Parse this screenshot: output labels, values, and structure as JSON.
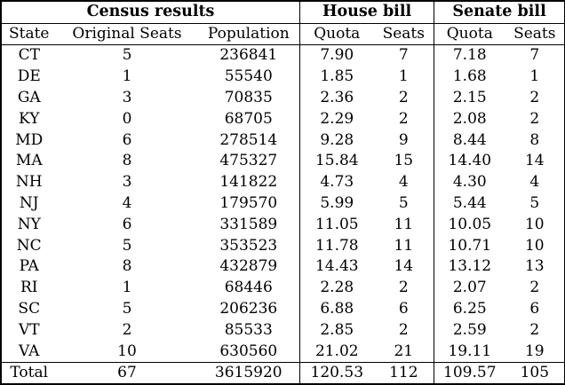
{
  "groups": {
    "census": "Census results",
    "house": "House bill",
    "senate": "Senate bill"
  },
  "columns": {
    "state": "State",
    "original_seats": "Original Seats",
    "population": "Population",
    "house_quota": "Quota",
    "house_seats": "Seats",
    "senate_quota": "Quota",
    "senate_seats": "Seats"
  },
  "rows": [
    {
      "state": "CT",
      "original_seats": "5",
      "population": "236841",
      "house_quota": "7.90",
      "house_seats": "7",
      "senate_quota": "7.18",
      "senate_seats": "7"
    },
    {
      "state": "DE",
      "original_seats": "1",
      "population": "55540",
      "house_quota": "1.85",
      "house_seats": "1",
      "senate_quota": "1.68",
      "senate_seats": "1"
    },
    {
      "state": "GA",
      "original_seats": "3",
      "population": "70835",
      "house_quota": "2.36",
      "house_seats": "2",
      "senate_quota": "2.15",
      "senate_seats": "2"
    },
    {
      "state": "KY",
      "original_seats": "0",
      "population": "68705",
      "house_quota": "2.29",
      "house_seats": "2",
      "senate_quota": "2.08",
      "senate_seats": "2"
    },
    {
      "state": "MD",
      "original_seats": "6",
      "population": "278514",
      "house_quota": "9.28",
      "house_seats": "9",
      "senate_quota": "8.44",
      "senate_seats": "8"
    },
    {
      "state": "MA",
      "original_seats": "8",
      "population": "475327",
      "house_quota": "15.84",
      "house_seats": "15",
      "senate_quota": "14.40",
      "senate_seats": "14"
    },
    {
      "state": "NH",
      "original_seats": "3",
      "population": "141822",
      "house_quota": "4.73",
      "house_seats": "4",
      "senate_quota": "4.30",
      "senate_seats": "4"
    },
    {
      "state": "NJ",
      "original_seats": "4",
      "population": "179570",
      "house_quota": "5.99",
      "house_seats": "5",
      "senate_quota": "5.44",
      "senate_seats": "5"
    },
    {
      "state": "NY",
      "original_seats": "6",
      "population": "331589",
      "house_quota": "11.05",
      "house_seats": "11",
      "senate_quota": "10.05",
      "senate_seats": "10"
    },
    {
      "state": "NC",
      "original_seats": "5",
      "population": "353523",
      "house_quota": "11.78",
      "house_seats": "11",
      "senate_quota": "10.71",
      "senate_seats": "10"
    },
    {
      "state": "PA",
      "original_seats": "8",
      "population": "432879",
      "house_quota": "14.43",
      "house_seats": "14",
      "senate_quota": "13.12",
      "senate_seats": "13"
    },
    {
      "state": "RI",
      "original_seats": "1",
      "population": "68446",
      "house_quota": "2.28",
      "house_seats": "2",
      "senate_quota": "2.07",
      "senate_seats": "2"
    },
    {
      "state": "SC",
      "original_seats": "5",
      "population": "206236",
      "house_quota": "6.88",
      "house_seats": "6",
      "senate_quota": "6.25",
      "senate_seats": "6"
    },
    {
      "state": "VT",
      "original_seats": "2",
      "population": "85533",
      "house_quota": "2.85",
      "house_seats": "2",
      "senate_quota": "2.59",
      "senate_seats": "2"
    },
    {
      "state": "VA",
      "original_seats": "10",
      "population": "630560",
      "house_quota": "21.02",
      "house_seats": "21",
      "senate_quota": "19.11",
      "senate_seats": "19"
    }
  ],
  "total": {
    "state": "Total",
    "original_seats": "67",
    "population": "3615920",
    "house_quota": "120.53",
    "house_seats": "112",
    "senate_quota": "109.57",
    "senate_seats": "105"
  }
}
